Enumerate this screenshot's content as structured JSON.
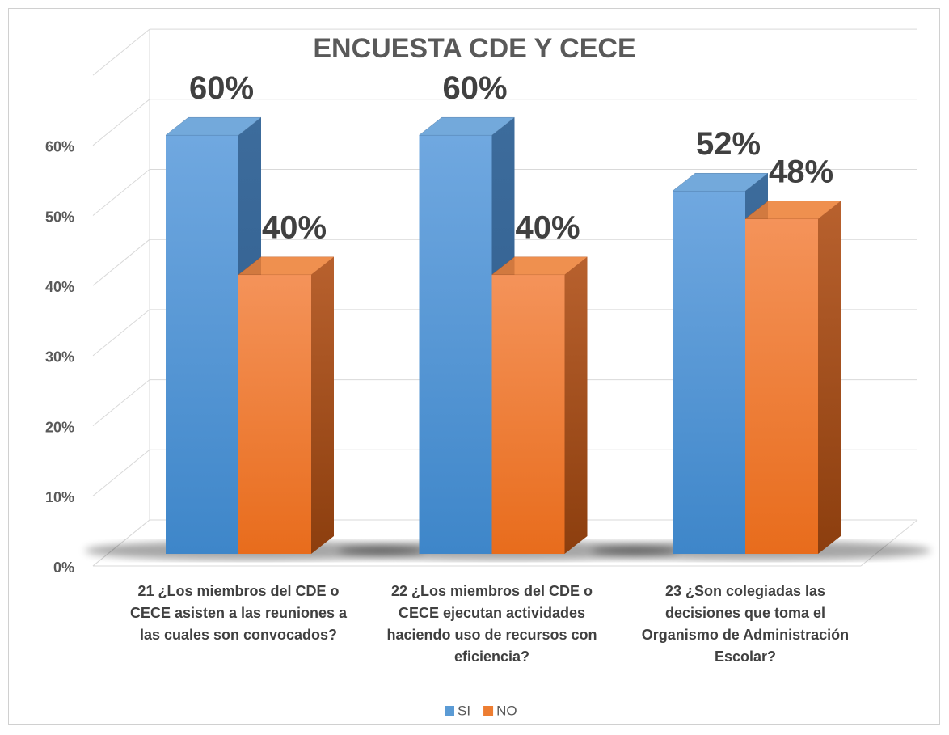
{
  "chart_data": {
    "type": "bar3d",
    "title": "ENCUESTA CDE Y CECE",
    "categories": [
      "21 ¿Los miembros del CDE o CECE asisten a las reuniones a las cuales son convocados?",
      "22 ¿Los miembros del CDE o CECE ejecutan actividades haciendo uso de recursos con eficiencia?",
      "23 ¿Son colegiadas las decisiones que toma el Organismo de Administración Escolar?"
    ],
    "series": [
      {
        "name": "SI",
        "color": "#5b9bd5",
        "values": [
          60,
          60,
          52
        ],
        "value_labels": [
          "60%",
          "60%",
          "52%"
        ]
      },
      {
        "name": "NO",
        "color": "#ed7d31",
        "values": [
          40,
          40,
          48
        ],
        "value_labels": [
          "40%",
          "40%",
          "48%"
        ]
      }
    ],
    "ylim": [
      0,
      70
    ],
    "yticks": [
      {
        "value": 0,
        "label": "0%"
      },
      {
        "value": 10,
        "label": "10%"
      },
      {
        "value": 20,
        "label": "20%"
      },
      {
        "value": 30,
        "label": "30%"
      },
      {
        "value": 40,
        "label": "40%"
      },
      {
        "value": 50,
        "label": "50%"
      },
      {
        "value": 60,
        "label": "60%"
      }
    ],
    "grid": true,
    "legend": "bottom"
  }
}
